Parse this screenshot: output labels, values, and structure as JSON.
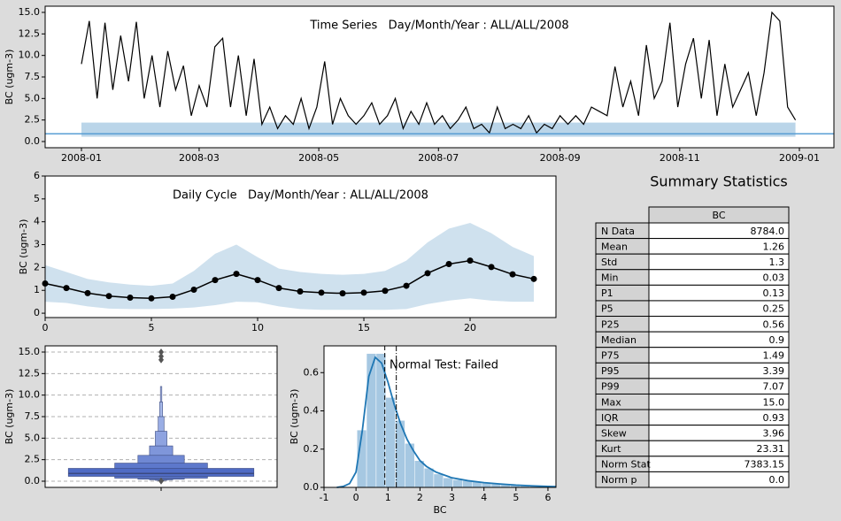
{
  "chart_data": [
    {
      "type": "timeseries",
      "title": "Time Series   Day/Month/Year : ALL/ALL/2008",
      "ylabel": "BC (ugm-3)",
      "x": [
        0,
        4,
        8,
        12,
        16,
        20,
        24,
        28,
        32,
        36,
        40,
        44,
        48,
        52,
        56,
        60,
        64,
        68,
        72,
        76,
        80,
        84,
        88,
        92,
        96,
        100,
        104,
        108,
        112,
        116,
        120,
        124,
        128,
        132,
        136,
        140,
        144,
        148,
        152,
        156,
        160,
        164,
        168,
        172,
        176,
        180,
        184,
        188,
        192,
        196,
        200,
        204,
        208,
        212,
        216,
        220,
        224,
        228,
        232,
        236,
        240,
        244,
        248,
        252,
        256,
        260,
        264,
        268,
        272,
        276,
        280,
        284,
        288,
        292,
        296,
        300,
        304,
        308,
        312,
        316,
        320,
        324,
        328,
        332,
        336,
        340,
        344,
        348,
        352,
        356,
        360,
        364
      ],
      "series": [
        {
          "name": "BC",
          "color": "#000000",
          "values": [
            9,
            14,
            5,
            13.8,
            6,
            12.3,
            7,
            13.9,
            5,
            10,
            4,
            10.5,
            6,
            8.8,
            3,
            6.5,
            4,
            11,
            12,
            4,
            10,
            3,
            9.6,
            2,
            4,
            1.5,
            3,
            2,
            5,
            1.5,
            4,
            9.3,
            2,
            5,
            3,
            2,
            3,
            4.5,
            2,
            3,
            5,
            1.5,
            3.5,
            2,
            4.5,
            2,
            3,
            1.5,
            2.5,
            4,
            1.5,
            2,
            1,
            4,
            1.5,
            2,
            1.5,
            3,
            1,
            2,
            1.5,
            3,
            2,
            3,
            2,
            4,
            3.5,
            3,
            8.7,
            4,
            7,
            3,
            11.2,
            5,
            7,
            13.8,
            4,
            9,
            12,
            5,
            11.8,
            3,
            9,
            4,
            6,
            8,
            3,
            8,
            15,
            14,
            4,
            2.5
          ]
        }
      ],
      "band": [
        0.56,
        2.2
      ],
      "band_color": "#a9cbe3",
      "hline": 0.9,
      "hline_color": "#5a9fd4",
      "xlim": [
        -18.5,
        383.6
      ],
      "xticks": [
        {
          "value": 0,
          "label": "2008-01"
        },
        {
          "value": 60,
          "label": "2008-03"
        },
        {
          "value": 121,
          "label": "2008-05"
        },
        {
          "value": 182,
          "label": "2008-07"
        },
        {
          "value": 244,
          "label": "2008-09"
        },
        {
          "value": 305,
          "label": "2008-11"
        },
        {
          "value": 366,
          "label": "2009-01"
        }
      ],
      "ylim": [
        -0.72,
        15.72
      ],
      "yticks": [
        {
          "value": 0,
          "label": "0.0"
        },
        2.5,
        {
          "value": 5,
          "label": "5.0"
        },
        7.5,
        {
          "value": 10,
          "label": "10.0"
        },
        12.5,
        {
          "value": 15,
          "label": "15.0"
        }
      ]
    },
    {
      "type": "cycle",
      "title": "Daily Cycle   Day/Month/Year : ALL/ALL/2008",
      "ylabel": "BC (ugm-3)",
      "x": [
        0,
        1,
        2,
        3,
        4,
        5,
        6,
        7,
        8,
        9,
        10,
        11,
        12,
        13,
        14,
        15,
        16,
        17,
        18,
        19,
        20,
        21,
        22,
        23
      ],
      "series": [
        {
          "name": "BC",
          "color": "#000000",
          "values": [
            1.3,
            1.1,
            0.88,
            0.75,
            0.68,
            0.65,
            0.72,
            1.03,
            1.45,
            1.72,
            1.45,
            1.1,
            0.95,
            0.9,
            0.87,
            0.9,
            0.98,
            1.2,
            1.75,
            2.15,
            2.3,
            2.02,
            1.7,
            1.5
          ]
        }
      ],
      "band_low": [
        0.5,
        0.45,
        0.3,
        0.2,
        0.18,
        0.18,
        0.2,
        0.25,
        0.35,
        0.5,
        0.48,
        0.3,
        0.18,
        0.15,
        0.15,
        0.15,
        0.15,
        0.18,
        0.4,
        0.55,
        0.65,
        0.55,
        0.5,
        0.5
      ],
      "band_high": [
        2.1,
        1.8,
        1.5,
        1.35,
        1.25,
        1.2,
        1.3,
        1.85,
        2.6,
        3.0,
        2.45,
        1.95,
        1.8,
        1.72,
        1.68,
        1.72,
        1.85,
        2.3,
        3.1,
        3.7,
        3.95,
        3.5,
        2.9,
        2.5
      ],
      "band_color": "#cfe1ee",
      "xlim": [
        0,
        24.04
      ],
      "xticks": [
        0,
        5,
        10,
        15,
        20
      ],
      "ylim": [
        -0.19,
        6
      ],
      "yticks": [
        0,
        1,
        2,
        3,
        4,
        5,
        6
      ]
    },
    {
      "type": "boxen",
      "ylabel": "BC (ugm-3)",
      "letter_values": [
        {
          "low": 0.56,
          "high": 1.49
        },
        {
          "low": 0.35,
          "high": 2.1
        },
        {
          "low": 0.22,
          "high": 3.0
        },
        {
          "low": 0.15,
          "high": 4.1
        },
        {
          "low": 0.1,
          "high": 5.8
        },
        {
          "low": 0.07,
          "high": 7.5
        },
        {
          "low": 0.05,
          "high": 9.2
        },
        {
          "low": 0.04,
          "high": 11
        }
      ],
      "colors": [
        "#4f6bc4",
        "#5d78cb",
        "#6f88d3",
        "#7f96da",
        "#8ea3e0",
        "#9aaee5",
        "#a8bae9",
        "#b7c6ee"
      ],
      "median": 0.9,
      "outliers": [
        15.0,
        14.5,
        14.1,
        0.03
      ],
      "grid": true,
      "ylim": [
        -0.72,
        15.72
      ],
      "yticks": [
        {
          "value": 0,
          "label": "0.0"
        },
        2.5,
        {
          "value": 5,
          "label": "5.0"
        },
        7.5,
        {
          "value": 10,
          "label": "10.0"
        },
        12.5,
        {
          "value": 15,
          "label": "15.0"
        }
      ]
    },
    {
      "type": "histogram",
      "xlabel": "BC",
      "ylabel": "BC (ugm-3)",
      "color": "#a6c8e2",
      "kde_color": "#1f77b4",
      "bins": [
        0.03,
        0.33,
        0.63,
        0.93,
        1.23,
        1.53,
        1.83,
        2.13,
        2.43,
        2.73,
        3.03,
        3.33,
        3.63,
        3.93,
        4.23,
        4.53,
        4.83,
        5.13,
        5.43,
        5.73,
        6.03
      ],
      "counts": [
        0.3,
        0.7,
        0.7,
        0.47,
        0.35,
        0.23,
        0.14,
        0.1,
        0.07,
        0.05,
        0.04,
        0.035,
        0.03,
        0.025,
        0.02,
        0.017,
        0.014,
        0.012,
        0.01,
        0.009
      ],
      "kde_x": [
        -0.6,
        -0.4,
        -0.2,
        0,
        0.2,
        0.4,
        0.6,
        0.8,
        1.0,
        1.2,
        1.4,
        1.6,
        1.8,
        2.0,
        2.2,
        2.5,
        3,
        3.5,
        4,
        4.5,
        5,
        5.5,
        6,
        6.25
      ],
      "kde_y": [
        0,
        0.005,
        0.02,
        0.08,
        0.3,
        0.58,
        0.68,
        0.65,
        0.55,
        0.43,
        0.33,
        0.25,
        0.19,
        0.14,
        0.11,
        0.08,
        0.05,
        0.035,
        0.025,
        0.018,
        0.012,
        0.008,
        0.005,
        0.004
      ],
      "vlines": [
        {
          "value": 0.9,
          "style": "dashed"
        },
        {
          "value": 1.26,
          "style": "dashdot"
        }
      ],
      "annotation": "Normal Test: Failed",
      "annotation_color": "#ff0000",
      "xlim": [
        -1,
        6.25
      ],
      "xticks": [
        -1,
        0,
        1,
        2,
        3,
        4,
        5,
        6
      ],
      "ylim": [
        0,
        0.74
      ],
      "yticks": [
        {
          "value": 0,
          "label": "0.0"
        },
        0.2,
        0.4,
        0.6
      ]
    }
  ],
  "summary": {
    "title": "Summary Statistics",
    "header": "BC",
    "rows": [
      [
        "N Data",
        "8784.0"
      ],
      [
        "Mean",
        "1.26"
      ],
      [
        "Std",
        "1.3"
      ],
      [
        "Min",
        "0.03"
      ],
      [
        "P1",
        "0.13"
      ],
      [
        "P5",
        "0.25"
      ],
      [
        "P25",
        "0.56"
      ],
      [
        "Median",
        "0.9"
      ],
      [
        "P75",
        "1.49"
      ],
      [
        "P95",
        "3.39"
      ],
      [
        "P99",
        "7.07"
      ],
      [
        "Max",
        "15.0"
      ],
      [
        "IQR",
        "0.93"
      ],
      [
        "Skew",
        "3.96"
      ],
      [
        "Kurt",
        "23.31"
      ],
      [
        "Norm Stat",
        "7383.15"
      ],
      [
        "Norm p",
        "0.0"
      ]
    ]
  }
}
